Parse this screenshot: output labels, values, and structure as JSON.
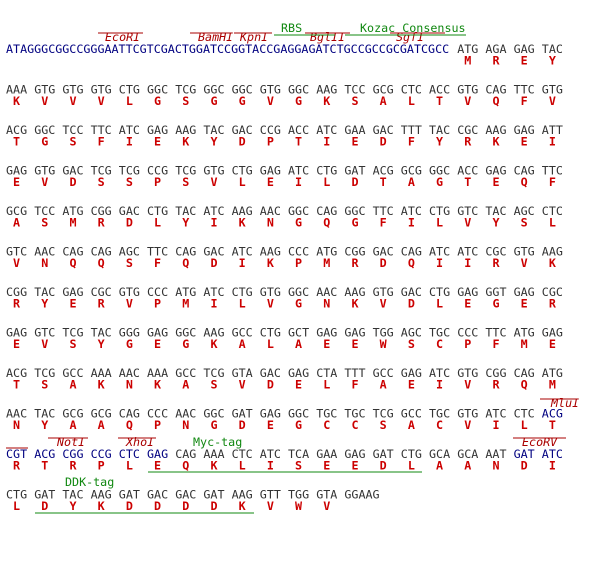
{
  "rows": [
    {
      "prefix": "ATAGGGCGGCCGGGAATTCGTCGACTGGATCCGGTACCGAGGAGATCTGCCGCCGCGATCGCC",
      "codons": [
        "ATG",
        "AGA",
        "GAG",
        "TAC"
      ],
      "aa": [
        "M",
        "R",
        "E",
        "Y"
      ]
    },
    {
      "codons": [
        "AAA",
        "GTG",
        "GTG",
        "GTG",
        "CTG",
        "GGC",
        "TCG",
        "GGC",
        "GGC",
        "GTG",
        "GGC",
        "AAG",
        "TCC",
        "GCG",
        "CTC",
        "ACC",
        "GTG",
        "CAG",
        "TTC",
        "GTG"
      ],
      "aa": [
        "K",
        "V",
        "V",
        "V",
        "L",
        "G",
        "S",
        "G",
        "G",
        "V",
        "G",
        "K",
        "S",
        "A",
        "L",
        "T",
        "V",
        "Q",
        "F",
        "V"
      ]
    },
    {
      "codons": [
        "ACG",
        "GGC",
        "TCC",
        "TTC",
        "ATC",
        "GAG",
        "AAG",
        "TAC",
        "GAC",
        "CCG",
        "ACC",
        "ATC",
        "GAA",
        "GAC",
        "TTT",
        "TAC",
        "CGC",
        "AAG",
        "GAG",
        "ATT"
      ],
      "aa": [
        "T",
        "G",
        "S",
        "F",
        "I",
        "E",
        "K",
        "Y",
        "D",
        "P",
        "T",
        "I",
        "E",
        "D",
        "F",
        "Y",
        "R",
        "K",
        "E",
        "I"
      ]
    },
    {
      "codons": [
        "GAG",
        "GTG",
        "GAC",
        "TCG",
        "TCG",
        "CCG",
        "TCG",
        "GTG",
        "CTG",
        "GAG",
        "ATC",
        "CTG",
        "GAT",
        "ACG",
        "GCG",
        "GGC",
        "ACC",
        "GAG",
        "CAG",
        "TTC"
      ],
      "aa": [
        "E",
        "V",
        "D",
        "S",
        "S",
        "P",
        "S",
        "V",
        "L",
        "E",
        "I",
        "L",
        "D",
        "T",
        "A",
        "G",
        "T",
        "E",
        "Q",
        "F"
      ]
    },
    {
      "codons": [
        "GCG",
        "TCC",
        "ATG",
        "CGG",
        "GAC",
        "CTG",
        "TAC",
        "ATC",
        "AAG",
        "AAC",
        "GGC",
        "CAG",
        "GGC",
        "TTC",
        "ATC",
        "CTG",
        "GTC",
        "TAC",
        "AGC",
        "CTC"
      ],
      "aa": [
        "A",
        "S",
        "M",
        "R",
        "D",
        "L",
        "Y",
        "I",
        "K",
        "N",
        "G",
        "Q",
        "G",
        "F",
        "I",
        "L",
        "V",
        "Y",
        "S",
        "L"
      ]
    },
    {
      "codons": [
        "GTC",
        "AAC",
        "CAG",
        "CAG",
        "AGC",
        "TTC",
        "CAG",
        "GAC",
        "ATC",
        "AAG",
        "CCC",
        "ATG",
        "CGG",
        "GAC",
        "CAG",
        "ATC",
        "ATC",
        "CGC",
        "GTG",
        "AAG"
      ],
      "aa": [
        "V",
        "N",
        "Q",
        "Q",
        "S",
        "F",
        "Q",
        "D",
        "I",
        "K",
        "P",
        "M",
        "R",
        "D",
        "Q",
        "I",
        "I",
        "R",
        "V",
        "K"
      ]
    },
    {
      "codons": [
        "CGG",
        "TAC",
        "GAG",
        "CGC",
        "GTG",
        "CCC",
        "ATG",
        "ATC",
        "CTG",
        "GTG",
        "GGC",
        "AAC",
        "AAG",
        "GTG",
        "GAC",
        "CTG",
        "GAG",
        "GGT",
        "GAG",
        "CGC"
      ],
      "aa": [
        "R",
        "Y",
        "E",
        "R",
        "V",
        "P",
        "M",
        "I",
        "L",
        "V",
        "G",
        "N",
        "K",
        "V",
        "D",
        "L",
        "E",
        "G",
        "E",
        "R"
      ]
    },
    {
      "codons": [
        "GAG",
        "GTC",
        "TCG",
        "TAC",
        "GGG",
        "GAG",
        "GGC",
        "AAG",
        "GCC",
        "CTG",
        "GCT",
        "GAG",
        "GAG",
        "TGG",
        "AGC",
        "TGC",
        "CCC",
        "TTC",
        "ATG",
        "GAG"
      ],
      "aa": [
        "E",
        "V",
        "S",
        "Y",
        "G",
        "E",
        "G",
        "K",
        "A",
        "L",
        "A",
        "E",
        "E",
        "W",
        "S",
        "C",
        "P",
        "F",
        "M",
        "E"
      ]
    },
    {
      "codons": [
        "ACG",
        "TCG",
        "GCC",
        "AAA",
        "AAC",
        "AAA",
        "GCC",
        "TCG",
        "GTA",
        "GAC",
        "GAG",
        "CTA",
        "TTT",
        "GCC",
        "GAG",
        "ATC",
        "GTG",
        "CGG",
        "CAG",
        "ATG"
      ],
      "aa": [
        "T",
        "S",
        "A",
        "K",
        "N",
        "K",
        "A",
        "S",
        "V",
        "D",
        "E",
        "L",
        "F",
        "A",
        "E",
        "I",
        "V",
        "R",
        "Q",
        "M"
      ]
    },
    {
      "codons": [
        "AAC",
        "TAC",
        "GCG",
        "GCG",
        "CAG",
        "CCC",
        "AAC",
        "GGC",
        "GAT",
        "GAG",
        "GGC",
        "TGC",
        "TGC",
        "TCG",
        "GCC",
        "TGC",
        "GTG",
        "ATC",
        "CTC",
        "ACG"
      ],
      "aa": [
        "N",
        "Y",
        "A",
        "A",
        "Q",
        "P",
        "N",
        "G",
        "D",
        "E",
        "G",
        "C",
        "C",
        "S",
        "A",
        "C",
        "V",
        "I",
        "L",
        "T"
      ],
      "colors": [
        "#333333",
        "#333333",
        "#333333",
        "#333333",
        "#333333",
        "#333333",
        "#333333",
        "#333333",
        "#333333",
        "#333333",
        "#333333",
        "#333333",
        "#333333",
        "#333333",
        "#333333",
        "#333333",
        "#333333",
        "#333333",
        "#333333",
        "#000080"
      ]
    },
    {
      "codons": [
        "CGT",
        "ACG",
        "CGG",
        "CCG",
        "CTC",
        "GAG",
        "CAG",
        "AAA",
        "CTC",
        "ATC",
        "TCA",
        "GAA",
        "GAG",
        "GAT",
        "CTG",
        "GCA",
        "GCA",
        "AAT",
        "GAT",
        "ATC"
      ],
      "aa": [
        "R",
        "T",
        "R",
        "P",
        "L",
        "E",
        "Q",
        "K",
        "L",
        "I",
        "S",
        "E",
        "E",
        "D",
        "L",
        "A",
        "A",
        "N",
        "D",
        "I"
      ],
      "colors": [
        "#000080",
        "#000080",
        "#000080",
        "#000080",
        "#000080",
        "#000080",
        "#333333",
        "#333333",
        "#333333",
        "#333333",
        "#333333",
        "#333333",
        "#333333",
        "#333333",
        "#333333",
        "#333333",
        "#333333",
        "#333333",
        "#000080",
        "#000080"
      ]
    },
    {
      "codons": [
        "CTG",
        "GAT",
        "TAC",
        "AAG",
        "GAT",
        "GAC",
        "GAC",
        "GAT",
        "AAG",
        "GTT",
        "TGG",
        "GTA",
        "GGAAG"
      ],
      "aa": [
        "L",
        "D",
        "Y",
        "K",
        "D",
        "D",
        "D",
        "D",
        "K",
        "V",
        "W",
        "V"
      ]
    }
  ],
  "annotations": [
    {
      "label": "EcoRI",
      "kind": "enzyme"
    },
    {
      "label": "BamHI",
      "kind": "enzyme"
    },
    {
      "label": "KpnI",
      "kind": "enzyme"
    },
    {
      "label": "BglII",
      "kind": "enzyme"
    },
    {
      "label": "SgfI",
      "kind": "enzyme"
    },
    {
      "label": "RBS",
      "kind": "feature"
    },
    {
      "label": "Kozac Consensus",
      "kind": "feature"
    },
    {
      "label": "MluI",
      "kind": "enzyme"
    },
    {
      "label": "NotI",
      "kind": "enzyme"
    },
    {
      "label": "XhoI",
      "kind": "enzyme"
    },
    {
      "label": "Myc-tag",
      "kind": "feature"
    },
    {
      "label": "EcoRV",
      "kind": "enzyme"
    },
    {
      "label": "DDK-tag",
      "kind": "feature"
    }
  ]
}
